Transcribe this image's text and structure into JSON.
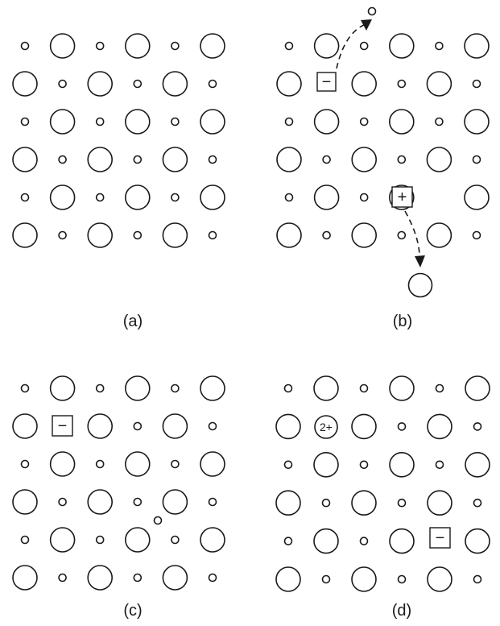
{
  "panels": [
    {
      "id": "a",
      "caption": "(a)"
    },
    {
      "id": "b",
      "caption": "(b)",
      "vacancy_minus_label": "−",
      "vacancy_plus_label": "+"
    },
    {
      "id": "c",
      "caption": "(c)",
      "vacancy_minus_label": "−"
    },
    {
      "id": "d",
      "caption": "(d)",
      "impurity_label": "2+",
      "vacancy_minus_label": "−"
    }
  ]
}
